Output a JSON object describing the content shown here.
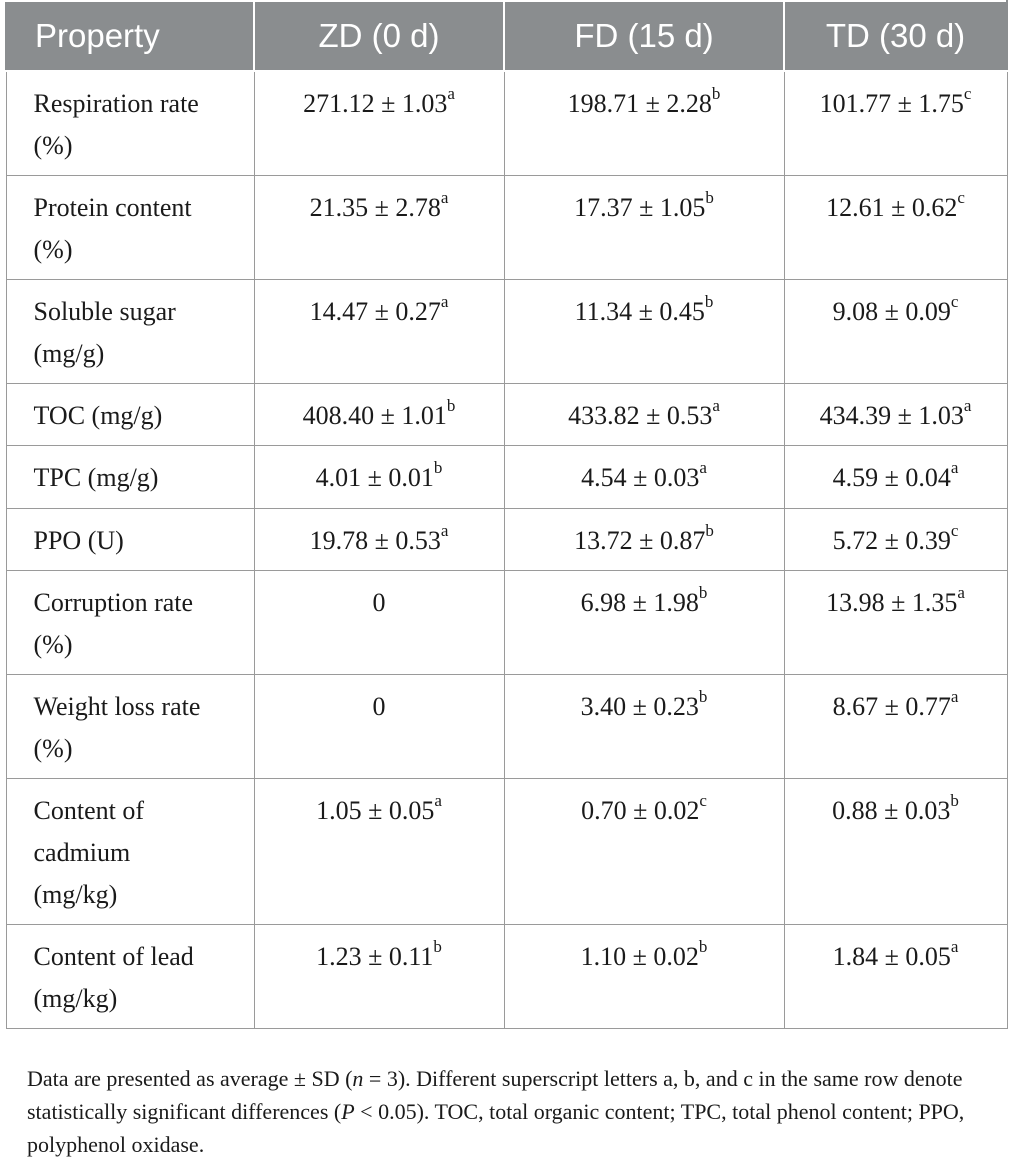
{
  "table": {
    "headers": [
      "Property",
      "ZD (0 d)",
      "FD (15 d)",
      "TD (30 d)"
    ],
    "rows": [
      {
        "property": [
          "Respiration rate",
          "(%)"
        ],
        "cells": [
          {
            "value": "271.12 ± 1.03",
            "sup": "a"
          },
          {
            "value": "198.71 ± 2.28",
            "sup": "b"
          },
          {
            "value": "101.77 ± 1.75",
            "sup": "c"
          }
        ]
      },
      {
        "property": [
          "Protein content",
          "(%)"
        ],
        "cells": [
          {
            "value": "21.35 ± 2.78",
            "sup": "a"
          },
          {
            "value": "17.37 ± 1.05",
            "sup": "b"
          },
          {
            "value": "12.61 ± 0.62",
            "sup": "c"
          }
        ]
      },
      {
        "property": [
          "Soluble sugar",
          "(mg/g)"
        ],
        "cells": [
          {
            "value": "14.47 ± 0.27",
            "sup": "a"
          },
          {
            "value": "11.34 ± 0.45",
            "sup": "b"
          },
          {
            "value": "9.08 ± 0.09",
            "sup": "c"
          }
        ]
      },
      {
        "property": [
          "TOC (mg/g)"
        ],
        "cells": [
          {
            "value": "408.40 ± 1.01",
            "sup": "b"
          },
          {
            "value": "433.82 ± 0.53",
            "sup": "a"
          },
          {
            "value": "434.39 ± 1.03",
            "sup": "a"
          }
        ]
      },
      {
        "property": [
          "TPC (mg/g)"
        ],
        "cells": [
          {
            "value": "4.01 ± 0.01",
            "sup": "b"
          },
          {
            "value": "4.54 ± 0.03",
            "sup": "a"
          },
          {
            "value": "4.59 ± 0.04",
            "sup": "a"
          }
        ]
      },
      {
        "property": [
          "PPO (U)"
        ],
        "cells": [
          {
            "value": "19.78 ± 0.53",
            "sup": "a"
          },
          {
            "value": "13.72 ± 0.87",
            "sup": "b"
          },
          {
            "value": "5.72 ± 0.39",
            "sup": "c"
          }
        ]
      },
      {
        "property": [
          "Corruption rate",
          "(%)"
        ],
        "cells": [
          {
            "value": "0",
            "sup": ""
          },
          {
            "value": "6.98 ± 1.98",
            "sup": "b"
          },
          {
            "value": "13.98 ± 1.35",
            "sup": "a"
          }
        ]
      },
      {
        "property": [
          "Weight loss rate",
          "(%)"
        ],
        "cells": [
          {
            "value": "0",
            "sup": ""
          },
          {
            "value": "3.40 ± 0.23",
            "sup": "b"
          },
          {
            "value": "8.67 ± 0.77",
            "sup": "a"
          }
        ]
      },
      {
        "property": [
          "Content of",
          "cadmium",
          "(mg/kg)"
        ],
        "cells": [
          {
            "value": "1.05 ± 0.05",
            "sup": "a"
          },
          {
            "value": "0.70 ± 0.02",
            "sup": "c"
          },
          {
            "value": "0.88 ± 0.03",
            "sup": "b"
          }
        ]
      },
      {
        "property": [
          "Content of lead",
          "(mg/kg)"
        ],
        "cells": [
          {
            "value": "1.23 ± 0.11",
            "sup": "b"
          },
          {
            "value": "1.10 ± 0.02",
            "sup": "b"
          },
          {
            "value": "1.84 ± 0.05",
            "sup": "a"
          }
        ]
      }
    ]
  },
  "footnote": {
    "part1": "Data are presented as average ± SD (",
    "n_var": "n",
    "part2": " = 3). Different superscript letters a, b, and c in the same row denote statistically significant differences (",
    "p_var": "P",
    "part3": " < 0.05). TOC, total organic content; TPC, total phenol content; PPO, polyphenol oxidase."
  }
}
